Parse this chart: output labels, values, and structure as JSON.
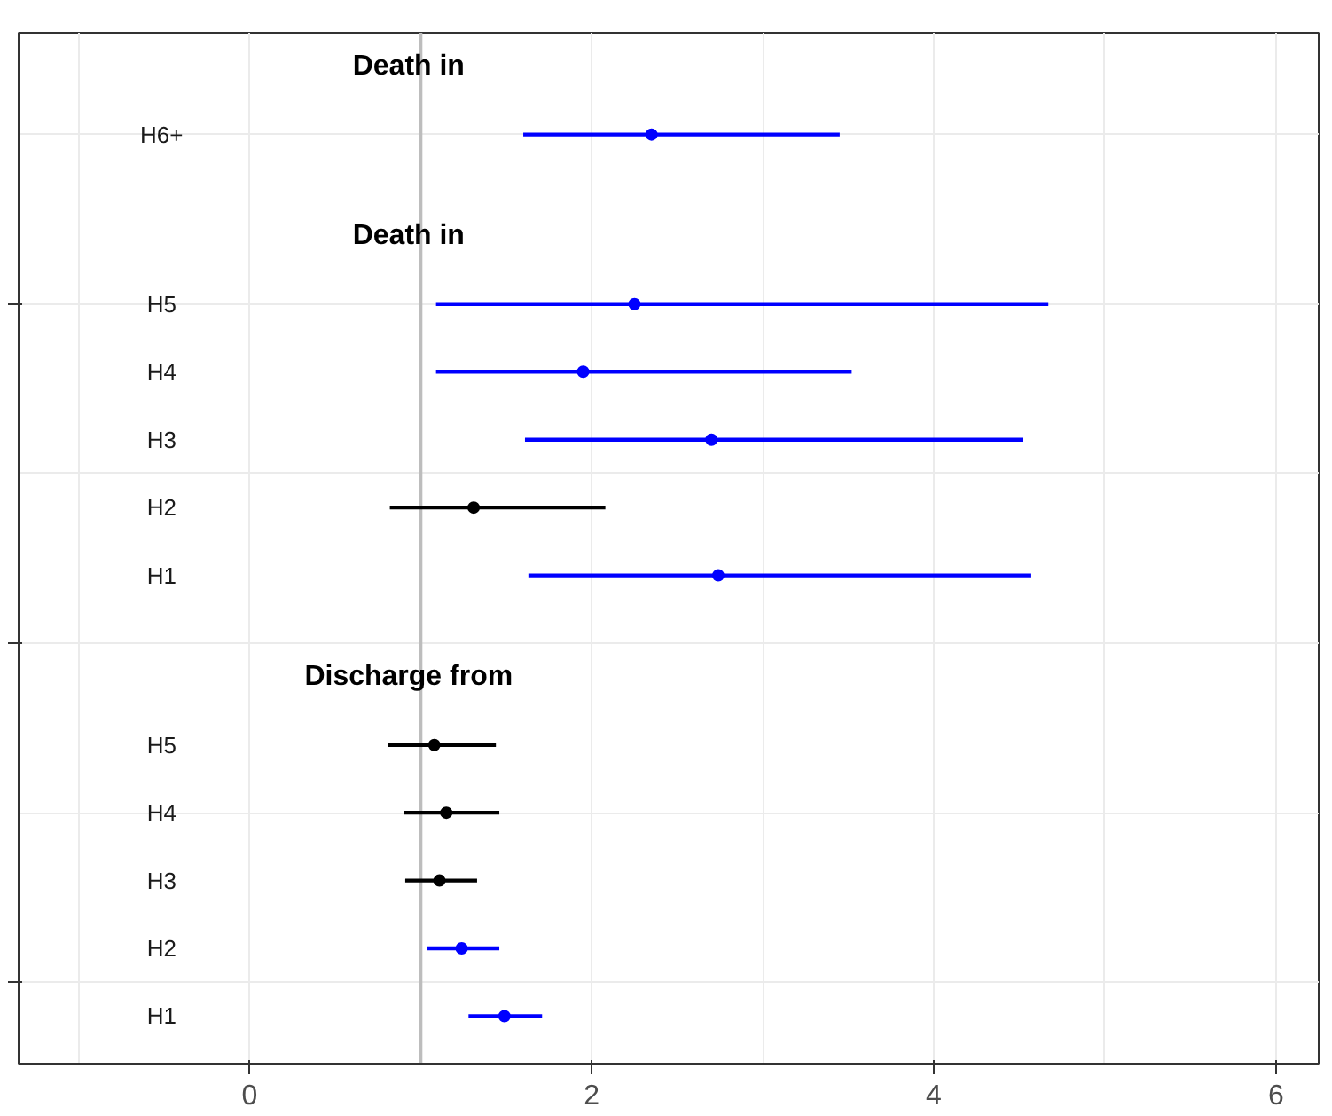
{
  "chart_data": {
    "type": "scatter",
    "orientation": "horizontal",
    "categories": [
      "H6+",
      "H5",
      "H4",
      "H3",
      "H2",
      "H1",
      "H5",
      "H4",
      "H3",
      "H2",
      "H1"
    ],
    "annotations": [
      "Death in",
      "Death in",
      "Discharge from"
    ],
    "series": [
      {
        "values": [
          2.35,
          null,
          null,
          null,
          null,
          null,
          null,
          null,
          null,
          null,
          null
        ],
        "errors": [
          [
            1.6,
            3.45
          ],
          null,
          null,
          null,
          null,
          null,
          null,
          null,
          null,
          null,
          null
        ],
        "colors": [
          "#0000ff",
          null,
          null,
          null,
          null,
          null,
          null,
          null,
          null,
          null,
          null
        ]
      },
      {
        "values": [
          null,
          2.25,
          1.95,
          2.7,
          1.31,
          2.74,
          null,
          null,
          null,
          null,
          null
        ],
        "errors": [
          null,
          [
            1.09,
            4.67
          ],
          [
            1.09,
            3.52
          ],
          [
            1.61,
            4.52
          ],
          [
            0.82,
            2.08
          ],
          [
            1.63,
            4.57
          ],
          null,
          null,
          null,
          null,
          null
        ],
        "colors": [
          null,
          "#0000ff",
          "#0000ff",
          "#0000ff",
          "#000000",
          "#0000ff",
          null,
          null,
          null,
          null,
          null
        ]
      },
      {
        "values": [
          null,
          null,
          null,
          null,
          null,
          null,
          1.08,
          1.15,
          1.11,
          1.24,
          1.49
        ],
        "errors": [
          null,
          null,
          null,
          null,
          null,
          null,
          [
            0.81,
            1.44
          ],
          [
            0.9,
            1.46
          ],
          [
            0.91,
            1.33
          ],
          [
            1.04,
            1.46
          ],
          [
            1.28,
            1.71
          ]
        ],
        "colors": [
          null,
          null,
          null,
          null,
          null,
          null,
          "#000000",
          "#000000",
          "#000000",
          "#0000ff",
          "#0000ff"
        ]
      }
    ],
    "xlim": [
      -1.35,
      6.25
    ],
    "xticks": [
      0,
      2,
      4,
      6
    ],
    "tick_labels": "x",
    "grid": true,
    "marker": "circle",
    "ref_lines": [
      {
        "axis": "x",
        "value": 1,
        "label": null,
        "color": "#bdbdbd"
      }
    ]
  }
}
